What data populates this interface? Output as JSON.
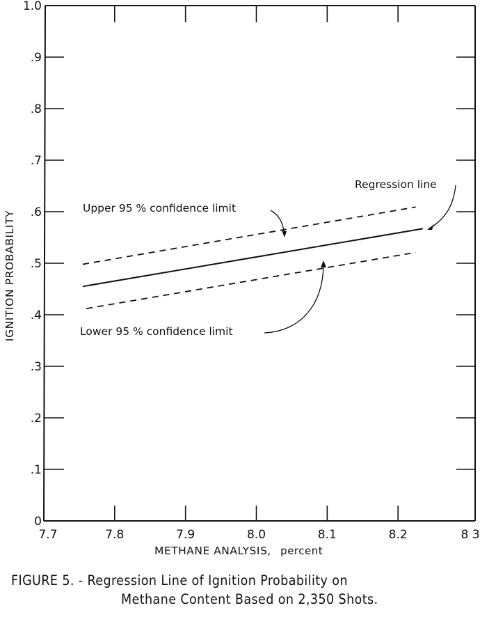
{
  "chart_data": {
    "type": "line",
    "title": "",
    "xlabel": "METHANE ANALYSIS, percent",
    "ylabel": "IGNITION PROBABILITY",
    "xlim": [
      7.7,
      8.3
    ],
    "ylim": [
      0,
      1.0
    ],
    "grid": false,
    "x_ticks": [
      "7.7",
      "7.8",
      "7.9",
      "8.0",
      "8.1",
      "8.2",
      "8 3"
    ],
    "y_ticks": [
      "0",
      ".1",
      ".2",
      ".3",
      ".4",
      ".5",
      ".6",
      ".7",
      ".8",
      ".9",
      "1.0"
    ],
    "series": [
      {
        "name": "Regression line",
        "style": "solid",
        "x": [
          7.755,
          8.235
        ],
        "y": [
          0.455,
          0.567
        ]
      },
      {
        "name": "Upper 95 % confidence limit",
        "style": "dashed",
        "x": [
          7.755,
          8.225
        ],
        "y": [
          0.498,
          0.609
        ]
      },
      {
        "name": "Lower 95 % confidence limit",
        "style": "dashed",
        "x": [
          7.76,
          8.225
        ],
        "y": [
          0.412,
          0.521
        ]
      }
    ],
    "annotations": [
      {
        "text": "Regression line",
        "points_to": "Regression line"
      },
      {
        "text": "Upper 95 % confidence limit",
        "points_to": "Upper 95 % confidence limit"
      },
      {
        "text": "Lower 95 % confidence limit",
        "points_to": "Lower 95 % confidence limit"
      }
    ]
  },
  "labels": {
    "xlabel": "METHANE ANALYSIS,",
    "xlabel_unit": "percent",
    "ylabel": "IGNITION  PROBABILITY",
    "regression": "Regression  line",
    "upper": "Upper  95 %  confidence  limit",
    "lower": "Lower  95 % confidence  limit"
  },
  "caption": {
    "line1": "FIGURE  5. - Regression Line of Ignition Probability on",
    "line2": "Methane Content Based on 2,350 Shots."
  }
}
